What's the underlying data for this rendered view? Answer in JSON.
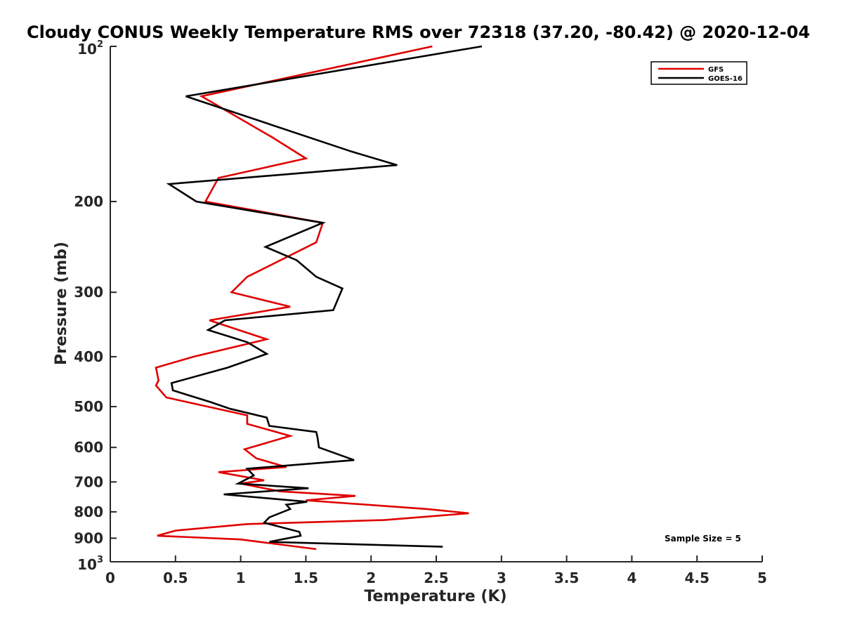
{
  "chart_data": {
    "type": "line",
    "title": "Cloudy CONUS Weekly Temperature RMS over 72318 (37.20, -80.42) @ 2020-12-04",
    "xlabel": "Temperature (K)",
    "ylabel": "Pressure (mb)",
    "xlim": [
      0,
      5
    ],
    "ylim": [
      100,
      1000
    ],
    "y_scale": "log",
    "y_reversed": true,
    "grid": false,
    "legend_position": "top-right",
    "x_ticks": [
      "0",
      "0.5",
      "1",
      "1.5",
      "2",
      "2.5",
      "3",
      "3.5",
      "4",
      "4.5",
      "5"
    ],
    "y_ticks": [
      {
        "value": 100,
        "base": "10",
        "exp": "2"
      },
      {
        "value": 200,
        "label": "200"
      },
      {
        "value": 300,
        "label": "300"
      },
      {
        "value": 400,
        "label": "400"
      },
      {
        "value": 500,
        "label": "500"
      },
      {
        "value": 600,
        "label": "600"
      },
      {
        "value": 700,
        "label": "700"
      },
      {
        "value": 800,
        "label": "800"
      },
      {
        "value": 900,
        "label": "900"
      },
      {
        "value": 1000,
        "base": "10",
        "exp": "3"
      }
    ],
    "annotation": "Sample Size = 5",
    "series": [
      {
        "name": "GFS",
        "color": "#e00000",
        "points": [
          [
            2.47,
            100
          ],
          [
            0.7,
            125
          ],
          [
            1.24,
            150
          ],
          [
            1.5,
            165
          ],
          [
            0.83,
            180
          ],
          [
            0.73,
            200
          ],
          [
            1.63,
            220
          ],
          [
            1.58,
            240
          ],
          [
            1.05,
            280
          ],
          [
            0.93,
            300
          ],
          [
            1.38,
            320
          ],
          [
            0.76,
            340
          ],
          [
            1.2,
            370
          ],
          [
            0.64,
            400
          ],
          [
            0.35,
            420
          ],
          [
            0.37,
            445
          ],
          [
            0.35,
            455
          ],
          [
            0.43,
            480
          ],
          [
            1.05,
            520
          ],
          [
            1.05,
            540
          ],
          [
            1.38,
            570
          ],
          [
            1.03,
            605
          ],
          [
            1.12,
            630
          ],
          [
            1.35,
            655
          ],
          [
            0.83,
            670
          ],
          [
            1.18,
            695
          ],
          [
            1.0,
            705
          ],
          [
            1.3,
            730
          ],
          [
            1.88,
            745
          ],
          [
            1.5,
            760
          ],
          [
            2.43,
            790
          ],
          [
            2.75,
            805
          ],
          [
            2.1,
            830
          ],
          [
            1.05,
            845
          ],
          [
            0.5,
            870
          ],
          [
            0.36,
            890
          ],
          [
            1.0,
            905
          ],
          [
            1.58,
            945
          ]
        ]
      },
      {
        "name": "GOES-16",
        "color": "#000000",
        "points": [
          [
            2.85,
            100
          ],
          [
            0.58,
            125
          ],
          [
            1.85,
            160
          ],
          [
            2.2,
            170
          ],
          [
            0.45,
            185
          ],
          [
            0.66,
            200
          ],
          [
            1.63,
            220
          ],
          [
            1.19,
            245
          ],
          [
            1.43,
            260
          ],
          [
            1.58,
            280
          ],
          [
            1.78,
            295
          ],
          [
            1.71,
            325
          ],
          [
            0.88,
            340
          ],
          [
            0.75,
            355
          ],
          [
            1.05,
            375
          ],
          [
            1.2,
            395
          ],
          [
            0.9,
            420
          ],
          [
            0.47,
            450
          ],
          [
            0.48,
            465
          ],
          [
            0.77,
            490
          ],
          [
            0.92,
            505
          ],
          [
            1.2,
            525
          ],
          [
            1.21,
            535
          ],
          [
            1.22,
            545
          ],
          [
            1.58,
            560
          ],
          [
            1.59,
            575
          ],
          [
            1.6,
            600
          ],
          [
            1.87,
            635
          ],
          [
            1.05,
            660
          ],
          [
            1.1,
            680
          ],
          [
            0.98,
            705
          ],
          [
            1.52,
            720
          ],
          [
            0.87,
            740
          ],
          [
            1.51,
            765
          ],
          [
            1.35,
            775
          ],
          [
            1.38,
            790
          ],
          [
            1.22,
            820
          ],
          [
            1.18,
            840
          ],
          [
            1.45,
            875
          ],
          [
            1.46,
            890
          ],
          [
            1.22,
            915
          ],
          [
            2.55,
            935
          ]
        ]
      }
    ]
  }
}
